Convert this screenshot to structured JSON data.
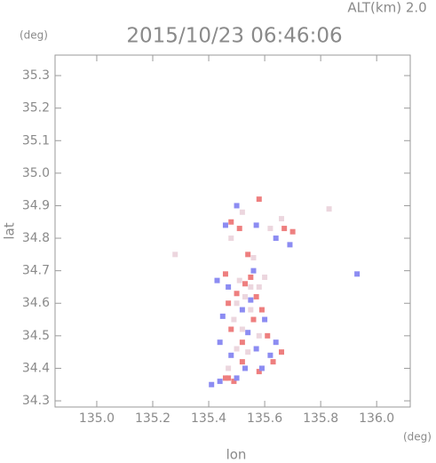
{
  "chart_data": {
    "type": "scatter",
    "title": "2015/10/23 06:46:06",
    "subtitle": "ALT(km) 2.0",
    "y_unit": "(deg)",
    "x_unit": "(deg)",
    "x_label": "lon",
    "y_label": "lat",
    "xlim": [
      134.851,
      136.12
    ],
    "ylim": [
      34.281,
      35.363
    ],
    "xticks": [
      {
        "value": 135.0,
        "label": "135.0"
      },
      {
        "value": 135.2,
        "label": "135.2"
      },
      {
        "value": 135.4,
        "label": "135.4"
      },
      {
        "value": 135.6,
        "label": "135.6"
      },
      {
        "value": 135.8,
        "label": "135.8"
      },
      {
        "value": 136.0,
        "label": "136.0"
      }
    ],
    "yticks": [
      34.3,
      34.4,
      34.5,
      34.6,
      34.7,
      34.8,
      34.9,
      {
        "value": 35.0,
        "label": "35.0"
      },
      35.1,
      35.2,
      35.3
    ],
    "series": [
      {
        "color": "#ee7f7f",
        "x": [
          135.46,
          135.47,
          135.49,
          135.52,
          135.48,
          135.47,
          135.5,
          135.53,
          135.55,
          135.57,
          135.59,
          135.56,
          135.61,
          135.63,
          135.66,
          135.51,
          135.48,
          135.58,
          135.67,
          135.7,
          135.54,
          135.46,
          135.52,
          135.58
        ],
        "y": [
          34.37,
          34.37,
          34.36,
          34.42,
          34.52,
          34.6,
          34.63,
          34.66,
          34.68,
          34.62,
          34.58,
          34.55,
          34.5,
          34.42,
          34.45,
          34.83,
          34.85,
          34.92,
          34.83,
          34.82,
          34.75,
          34.69,
          34.48,
          34.39
        ]
      },
      {
        "color": "#8c8cf2",
        "x": [
          135.41,
          135.44,
          135.5,
          135.53,
          135.48,
          135.44,
          135.5,
          135.46,
          135.57,
          135.64,
          135.69,
          135.93,
          135.43,
          135.47,
          135.55,
          135.6,
          135.64,
          135.62,
          135.57,
          135.59,
          135.52,
          135.56,
          135.54,
          135.45
        ],
        "y": [
          34.35,
          34.36,
          34.37,
          34.4,
          34.44,
          34.48,
          34.9,
          34.84,
          34.84,
          34.8,
          34.78,
          34.69,
          34.67,
          34.65,
          34.61,
          34.55,
          34.48,
          34.44,
          34.46,
          34.4,
          34.58,
          34.7,
          34.51,
          34.56
        ]
      },
      {
        "color": "#ecd6de",
        "x": [
          135.5,
          135.53,
          135.55,
          135.51,
          135.49,
          135.52,
          135.55,
          135.58,
          135.6,
          135.48,
          135.52,
          135.62,
          135.66,
          135.54,
          135.5,
          135.47,
          135.58,
          135.28,
          135.83,
          135.56
        ],
        "y": [
          34.6,
          34.62,
          34.65,
          34.67,
          34.55,
          34.52,
          34.58,
          34.65,
          34.68,
          34.8,
          34.88,
          34.83,
          34.86,
          34.45,
          34.46,
          34.4,
          34.5,
          34.75,
          34.89,
          34.74
        ]
      }
    ]
  }
}
